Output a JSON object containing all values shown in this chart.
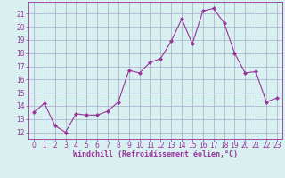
{
  "x": [
    0,
    1,
    2,
    3,
    4,
    5,
    6,
    7,
    8,
    9,
    10,
    11,
    12,
    13,
    14,
    15,
    16,
    17,
    18,
    19,
    20,
    21,
    22,
    23
  ],
  "y": [
    13.5,
    14.2,
    12.5,
    12.0,
    13.4,
    13.3,
    13.3,
    13.6,
    14.3,
    16.7,
    16.5,
    17.3,
    17.6,
    18.9,
    20.6,
    18.7,
    21.2,
    21.4,
    20.3,
    18.0,
    16.5,
    16.6,
    14.3,
    14.6
  ],
  "line_color": "#993399",
  "marker": "D",
  "marker_size": 2.0,
  "bg_color": "#d8f0f0",
  "grid_color": "#aaaacc",
  "tick_color": "#993399",
  "label_color": "#993399",
  "xlabel": "Windchill (Refroidissement éolien,°C)",
  "ylim": [
    11.5,
    21.9
  ],
  "xlim": [
    -0.5,
    23.5
  ],
  "yticks": [
    12,
    13,
    14,
    15,
    16,
    17,
    18,
    19,
    20,
    21
  ],
  "xticks": [
    0,
    1,
    2,
    3,
    4,
    5,
    6,
    7,
    8,
    9,
    10,
    11,
    12,
    13,
    14,
    15,
    16,
    17,
    18,
    19,
    20,
    21,
    22,
    23
  ],
  "tick_fontsize": 5.5,
  "xlabel_fontsize": 6.0,
  "linewidth": 0.8
}
